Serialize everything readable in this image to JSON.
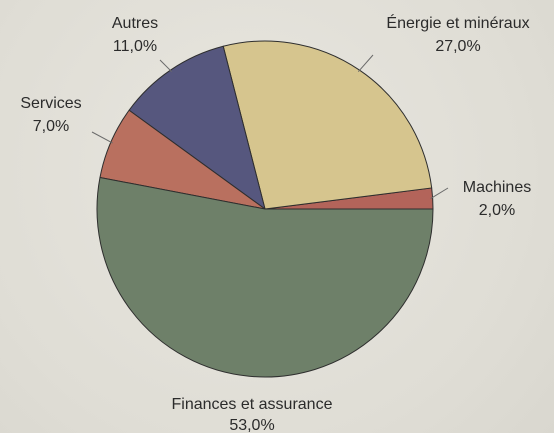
{
  "chart_data": {
    "type": "pie",
    "title": "",
    "start_angle_deg": 0,
    "direction": "counterclockwise",
    "slices": [
      {
        "name": "Machines",
        "value": 2.0,
        "value_label": "2,0%",
        "color": "#b3645a"
      },
      {
        "name": "Énergie et minéraux",
        "value": 27.0,
        "value_label": "27,0%",
        "color": "#d6c58e"
      },
      {
        "name": "Autres",
        "value": 11.0,
        "value_label": "11,0%",
        "color": "#56577e"
      },
      {
        "name": "Services",
        "value": 7.0,
        "value_label": "7,0%",
        "color": "#b9705f"
      },
      {
        "name": "Finances et assurance",
        "value": 53.0,
        "value_label": "53,0%",
        "color": "#6e8069"
      }
    ]
  }
}
